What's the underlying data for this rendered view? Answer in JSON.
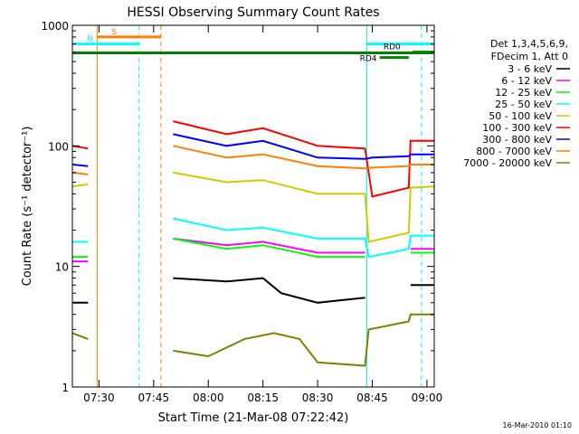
{
  "footer_timestamp": "16-Mar-2010 01:10",
  "chart_data": {
    "type": "line",
    "title": "HESSI Observing Summary Count Rates",
    "xlabel": "Start Time (21-Mar-08 07:22:42)",
    "ylabel": "Count Rate (s⁻¹ detector⁻¹)",
    "y_scale": "log",
    "ylim": [
      1,
      1000
    ],
    "xlim": [
      "07:22:42",
      "09:02:00"
    ],
    "x_unit": "time of day (HH:MM)",
    "x_ticks": [
      "07:30",
      "07:45",
      "08:00",
      "08:15",
      "08:30",
      "08:45",
      "09:00"
    ],
    "y_ticks": [
      "1",
      "10",
      "100",
      "1000"
    ],
    "grid": false,
    "legend_position": "right, outside plot",
    "legend_header": [
      "Det 1,3,4,5,6,9,",
      "FDecim 1, Att 0"
    ],
    "series": [
      {
        "name": "3 - 6 keV",
        "color": "#000000",
        "points": [
          [
            "07:22:42",
            5
          ],
          [
            "07:27:00",
            5
          ],
          [
            "07:27:30",
            null
          ],
          [
            "07:50:00",
            null
          ],
          [
            "07:50:20",
            8
          ],
          [
            "08:05:00",
            7.5
          ],
          [
            "08:15:00",
            8
          ],
          [
            "08:20:00",
            6
          ],
          [
            "08:30:00",
            5
          ],
          [
            "08:43:00",
            5.5
          ],
          [
            "08:44:00",
            null
          ],
          [
            "08:55:00",
            null
          ],
          [
            "08:55:30",
            7
          ],
          [
            "09:02:00",
            7
          ]
        ]
      },
      {
        "name": "6 - 12 keV",
        "color": "#ff00ff",
        "points": [
          [
            "07:22:42",
            11
          ],
          [
            "07:27:00",
            11
          ],
          [
            "07:27:30",
            null
          ],
          [
            "07:50:00",
            null
          ],
          [
            "07:50:20",
            17
          ],
          [
            "08:05:00",
            15
          ],
          [
            "08:15:00",
            16
          ],
          [
            "08:30:00",
            13
          ],
          [
            "08:43:00",
            13
          ],
          [
            "08:44:00",
            null
          ],
          [
            "08:55:00",
            null
          ],
          [
            "08:55:30",
            14
          ],
          [
            "09:02:00",
            14
          ]
        ]
      },
      {
        "name": "12 - 25 keV",
        "color": "#00ff00",
        "points": [
          [
            "07:22:42",
            12
          ],
          [
            "07:27:00",
            12
          ],
          [
            "07:27:30",
            null
          ],
          [
            "07:50:00",
            null
          ],
          [
            "07:50:20",
            17
          ],
          [
            "08:05:00",
            14
          ],
          [
            "08:15:00",
            15
          ],
          [
            "08:30:00",
            12
          ],
          [
            "08:43:00",
            12
          ],
          [
            "08:44:00",
            null
          ],
          [
            "08:55:00",
            null
          ],
          [
            "08:55:30",
            13
          ],
          [
            "09:02:00",
            13
          ]
        ]
      },
      {
        "name": "25 - 50 keV",
        "color": "#00ffff",
        "points": [
          [
            "07:22:42",
            16
          ],
          [
            "07:27:00",
            16
          ],
          [
            "07:27:30",
            null
          ],
          [
            "07:50:00",
            null
          ],
          [
            "07:50:20",
            25
          ],
          [
            "08:05:00",
            20
          ],
          [
            "08:15:00",
            21
          ],
          [
            "08:30:00",
            17
          ],
          [
            "08:43:00",
            17
          ],
          [
            "08:44:00",
            12
          ],
          [
            "08:50:00",
            13
          ],
          [
            "08:55:00",
            14
          ],
          [
            "08:55:30",
            18
          ],
          [
            "09:02:00",
            18
          ]
        ]
      },
      {
        "name": "50 - 100 keV",
        "color": "#cccc00",
        "points": [
          [
            "07:22:42",
            46
          ],
          [
            "07:27:00",
            48
          ],
          [
            "07:27:30",
            null
          ],
          [
            "07:50:00",
            null
          ],
          [
            "07:50:20",
            60
          ],
          [
            "08:05:00",
            50
          ],
          [
            "08:15:00",
            52
          ],
          [
            "08:30:00",
            40
          ],
          [
            "08:43:00",
            40
          ],
          [
            "08:44:00",
            16
          ],
          [
            "08:55:00",
            19
          ],
          [
            "08:55:30",
            45
          ],
          [
            "09:02:00",
            46
          ]
        ]
      },
      {
        "name": "100 - 300 keV",
        "color": "#ff0000",
        "points": [
          [
            "07:22:42",
            100
          ],
          [
            "07:27:00",
            95
          ],
          [
            "07:27:30",
            null
          ],
          [
            "07:50:00",
            null
          ],
          [
            "07:50:20",
            160
          ],
          [
            "08:05:00",
            125
          ],
          [
            "08:15:00",
            140
          ],
          [
            "08:30:00",
            100
          ],
          [
            "08:43:00",
            95
          ],
          [
            "08:45:00",
            38
          ],
          [
            "08:55:00",
            45
          ],
          [
            "08:55:30",
            110
          ],
          [
            "09:02:00",
            110
          ]
        ]
      },
      {
        "name": "300 - 800 keV",
        "color": "#0000ff",
        "points": [
          [
            "07:22:42",
            70
          ],
          [
            "07:27:00",
            68
          ],
          [
            "07:27:30",
            null
          ],
          [
            "07:50:00",
            null
          ],
          [
            "07:50:20",
            125
          ],
          [
            "08:05:00",
            100
          ],
          [
            "08:15:00",
            110
          ],
          [
            "08:30:00",
            80
          ],
          [
            "08:43:00",
            78
          ],
          [
            "08:45:00",
            80
          ],
          [
            "08:55:00",
            82
          ],
          [
            "08:55:30",
            85
          ],
          [
            "09:02:00",
            85
          ]
        ]
      },
      {
        "name": "800 - 7000 keV",
        "color": "#ff8000",
        "points": [
          [
            "07:22:42",
            60
          ],
          [
            "07:27:00",
            58
          ],
          [
            "07:27:30",
            null
          ],
          [
            "07:50:00",
            null
          ],
          [
            "07:50:20",
            100
          ],
          [
            "08:05:00",
            80
          ],
          [
            "08:15:00",
            85
          ],
          [
            "08:30:00",
            68
          ],
          [
            "08:43:00",
            65
          ],
          [
            "08:45:00",
            66
          ],
          [
            "08:55:00",
            68
          ],
          [
            "08:55:30",
            70
          ],
          [
            "09:02:00",
            70
          ]
        ]
      },
      {
        "name": "7000 - 20000 keV",
        "color": "#808000",
        "points": [
          [
            "07:22:42",
            2.8
          ],
          [
            "07:27:00",
            2.5
          ],
          [
            "07:27:30",
            null
          ],
          [
            "07:50:00",
            null
          ],
          [
            "07:50:20",
            2
          ],
          [
            "08:00:00",
            1.8
          ],
          [
            "08:10:00",
            2.5
          ],
          [
            "08:18:00",
            2.8
          ],
          [
            "08:25:00",
            2.5
          ],
          [
            "08:30:00",
            1.6
          ],
          [
            "08:43:00",
            1.5
          ],
          [
            "08:44:00",
            3
          ],
          [
            "08:55:00",
            3.5
          ],
          [
            "08:55:30",
            4
          ],
          [
            "09:02:00",
            4
          ]
        ]
      }
    ],
    "markers": [
      {
        "label": "S",
        "color": "#ff8000",
        "style": "solid",
        "time": "07:29:30"
      },
      {
        "label": "",
        "color": "#ff8000",
        "style": "dashed",
        "time": "07:47:00"
      },
      {
        "label": "N",
        "color": "#00ffff",
        "style": "dashed",
        "time": "07:41:00"
      },
      {
        "label": "",
        "color": "#00ffff",
        "style": "solid",
        "time": "07:22:42"
      },
      {
        "label": "",
        "color": "#00ffff",
        "style": "solid",
        "time": "08:43:30"
      },
      {
        "label": "",
        "color": "#00ffff",
        "style": "dashed",
        "time": "08:58:30"
      }
    ],
    "bars": [
      {
        "label": "S",
        "color": "#ff8000",
        "start": "07:29:30",
        "end": "07:47:00",
        "y": 800
      },
      {
        "label": "N",
        "color": "#00ffff",
        "start": "07:22:42",
        "end": "07:41:00",
        "y": 700
      },
      {
        "label": "",
        "color": "#00ffff",
        "start": "08:43:30",
        "end": "09:02:00",
        "y": 700
      },
      {
        "label": "",
        "color": "#008000",
        "start": "07:22:42",
        "end": "09:02:00",
        "y": 590
      },
      {
        "label": "RD0",
        "color": "#008000",
        "start": "08:56:00",
        "end": "09:02:00",
        "y": 600
      },
      {
        "label": "RD4",
        "color": "#008000",
        "start": "08:47:00",
        "end": "08:55:00",
        "y": 540
      }
    ]
  }
}
